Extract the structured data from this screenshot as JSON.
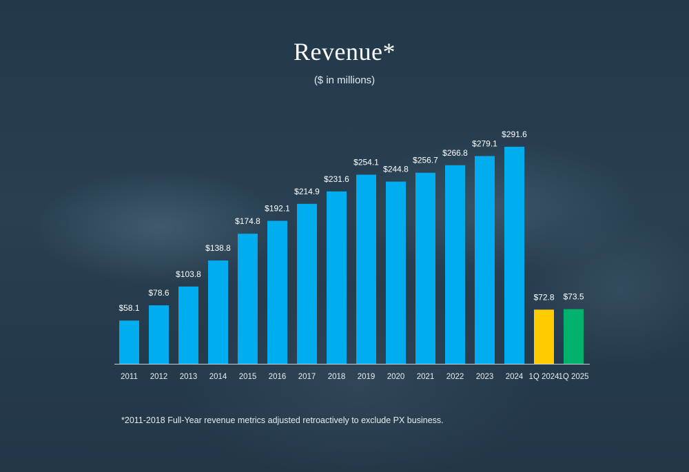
{
  "chart_data": {
    "type": "bar",
    "title": "Revenue*",
    "subtitle": "($ in millions)",
    "footnote": "*2011-2018 Full-Year revenue metrics adjusted retroactively to exclude PX business.",
    "categories": [
      "2011",
      "2012",
      "2013",
      "2014",
      "2015",
      "2016",
      "2017",
      "2018",
      "2019",
      "2020",
      "2021",
      "2022",
      "2023",
      "2024",
      "1Q 2024",
      "1Q 2025"
    ],
    "values": [
      58.1,
      78.6,
      103.8,
      138.8,
      174.8,
      192.1,
      214.9,
      231.6,
      254.1,
      244.8,
      256.7,
      266.8,
      279.1,
      291.6,
      72.8,
      73.5
    ],
    "data_labels": [
      "$58.1",
      "$78.6",
      "$103.8",
      "$138.8",
      "$174.8",
      "$192.1",
      "$214.9",
      "$231.6",
      "$254.1",
      "$244.8",
      "$256.7",
      "$266.8",
      "$279.1",
      "$291.6",
      "$72.8",
      "$73.5"
    ],
    "bar_colors": [
      "#00aeef",
      "#00aeef",
      "#00aeef",
      "#00aeef",
      "#00aeef",
      "#00aeef",
      "#00aeef",
      "#00aeef",
      "#00aeef",
      "#00aeef",
      "#00aeef",
      "#00aeef",
      "#00aeef",
      "#00aeef",
      "#ffcc00",
      "#00b26b"
    ],
    "ylim": [
      0,
      300
    ],
    "grid": false,
    "xlabel": "",
    "ylabel": ""
  }
}
